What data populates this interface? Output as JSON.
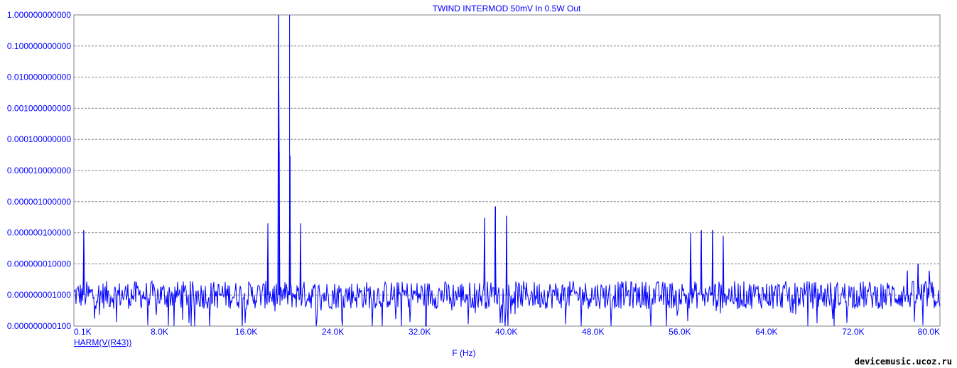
{
  "chart_data": {
    "type": "line",
    "title": "TWIND INTERMOD 50mV In 0.5W Out",
    "xlabel": "F (Hz)",
    "ylabel": "",
    "x_scale": "linear",
    "y_scale": "log",
    "xlim": [
      100,
      80000
    ],
    "ylim": [
      1e-10,
      1
    ],
    "grid": true,
    "x_ticks": [
      {
        "value": 100,
        "label": "0.1K"
      },
      {
        "value": 8000,
        "label": "8.0K"
      },
      {
        "value": 16000,
        "label": "16.0K"
      },
      {
        "value": 24000,
        "label": "24.0K"
      },
      {
        "value": 32000,
        "label": "32.0K"
      },
      {
        "value": 40000,
        "label": "40.0K"
      },
      {
        "value": 48000,
        "label": "48.0K"
      },
      {
        "value": 56000,
        "label": "56.0K"
      },
      {
        "value": 64000,
        "label": "64.0K"
      },
      {
        "value": 72000,
        "label": "72.0K"
      },
      {
        "value": 80000,
        "label": "80.0K"
      }
    ],
    "y_ticks": [
      {
        "value": 1,
        "label": "1.000000000000"
      },
      {
        "value": 0.1,
        "label": "0.100000000000"
      },
      {
        "value": 0.01,
        "label": "0.010000000000"
      },
      {
        "value": 0.001,
        "label": "0.001000000000"
      },
      {
        "value": 0.0001,
        "label": "0.000100000000"
      },
      {
        "value": 1e-05,
        "label": "0.000010000000"
      },
      {
        "value": 1e-06,
        "label": "0.000001000000"
      },
      {
        "value": 1e-07,
        "label": "0.000000100000"
      },
      {
        "value": 1e-08,
        "label": "0.000000010000"
      },
      {
        "value": 1e-09,
        "label": "0.000000001000"
      },
      {
        "value": 1e-10,
        "label": "0.000000000100"
      }
    ],
    "series": [
      {
        "name": "HARM(V(R43))",
        "color": "#0000ff",
        "noise_floor": 1e-09,
        "peaks": [
          {
            "x": 1000,
            "y": 1.2e-07
          },
          {
            "x": 18000,
            "y": 2e-07
          },
          {
            "x": 19000,
            "y": 1.0
          },
          {
            "x": 19050,
            "y": 4e-05
          },
          {
            "x": 20000,
            "y": 1.0
          },
          {
            "x": 20050,
            "y": 3e-05
          },
          {
            "x": 21000,
            "y": 2e-07
          },
          {
            "x": 38000,
            "y": 3e-07
          },
          {
            "x": 39000,
            "y": 7e-07
          },
          {
            "x": 40000,
            "y": 3.5e-07
          },
          {
            "x": 57000,
            "y": 1e-07
          },
          {
            "x": 58000,
            "y": 1.2e-07
          },
          {
            "x": 59000,
            "y": 1.2e-07
          },
          {
            "x": 60000,
            "y": 8e-08
          },
          {
            "x": 77000,
            "y": 6e-09
          },
          {
            "x": 78000,
            "y": 1e-08
          },
          {
            "x": 79000,
            "y": 6e-09
          }
        ]
      }
    ]
  },
  "watermark": "devicemusic.ucoz.ru",
  "colors": {
    "text": "#0000ff",
    "trace": "#0000ff",
    "grid": "#808080",
    "frame": "#808080",
    "background": "#ffffff"
  }
}
